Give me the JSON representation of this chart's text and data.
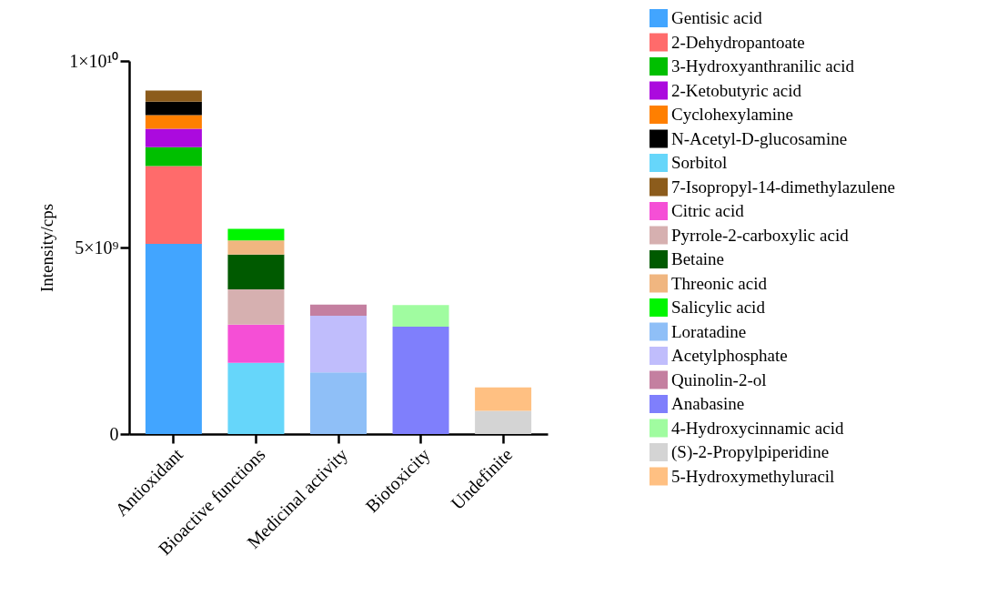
{
  "chart_data": {
    "type": "bar",
    "stacked": true,
    "ylabel": "Intensity/cps",
    "categories": [
      "Antioxidant",
      "Bioactive functions",
      "Medicinal activity",
      "Biotoxicity",
      "Undefinite"
    ],
    "ylim": [
      0,
      10000000000
    ],
    "yticks": [
      0,
      {
        "value": 5000000000,
        "label": "5×10⁹"
      },
      {
        "value": 10000000000,
        "label": "1×10¹⁰"
      }
    ],
    "grid": false,
    "legend": "right",
    "series": [
      {
        "name": "Gentisic acid",
        "color": "#42a5ff",
        "values": [
          5100000000,
          null,
          null,
          null,
          null
        ]
      },
      {
        "name": "2-Dehydropantoate",
        "color": "#ff6b6b",
        "values": [
          2080000000,
          null,
          null,
          null,
          null
        ]
      },
      {
        "name": "3-Hydroxyanthranilic acid",
        "color": "#00bf00",
        "values": [
          510000000,
          null,
          null,
          null,
          null
        ]
      },
      {
        "name": "2-Ketobutyric acid",
        "color": "#ab0ade",
        "values": [
          490000000,
          null,
          null,
          null,
          null
        ]
      },
      {
        "name": "Cyclohexylamine",
        "color": "#ff7f00",
        "values": [
          370000000,
          null,
          null,
          null,
          null
        ]
      },
      {
        "name": "N-Acetyl-D-glucosamine",
        "color": "#000000",
        "values": [
          360000000,
          null,
          null,
          null,
          null
        ]
      },
      {
        "name": "Sorbitol",
        "color": "#66d6fa",
        "values": [
          null,
          1910000000,
          null,
          null,
          null
        ]
      },
      {
        "name": "7-Isopropyl-14-dimethylazulene",
        "color": "#8c5c1c",
        "values": [
          300000000,
          null,
          null,
          null,
          null
        ]
      },
      {
        "name": "Citric acid",
        "color": "#f54fd6",
        "values": [
          null,
          1020000000,
          null,
          null,
          null
        ]
      },
      {
        "name": "Pyrrole-2-carboxylic acid",
        "color": "#d6b0b0",
        "values": [
          null,
          950000000,
          null,
          null,
          null
        ]
      },
      {
        "name": "Betaine",
        "color": "#005a00",
        "values": [
          null,
          930000000,
          null,
          null,
          null
        ]
      },
      {
        "name": "Threonic acid",
        "color": "#f0b680",
        "values": [
          null,
          380000000,
          null,
          null,
          null
        ]
      },
      {
        "name": "Salicylic acid",
        "color": "#00f500",
        "values": [
          null,
          310000000,
          null,
          null,
          null
        ]
      },
      {
        "name": "Loratadine",
        "color": "#8fbff7",
        "values": [
          null,
          null,
          1650000000,
          null,
          null
        ]
      },
      {
        "name": "Acetylphosphate",
        "color": "#c0bdfc",
        "values": [
          null,
          null,
          1520000000,
          null,
          null
        ]
      },
      {
        "name": "Quinolin-2-ol",
        "color": "#c47fa0",
        "values": [
          null,
          null,
          300000000,
          null,
          null
        ]
      },
      {
        "name": "Anabasine",
        "color": "#7f7ffc",
        "values": [
          null,
          null,
          null,
          2880000000,
          null
        ]
      },
      {
        "name": "4-Hydroxycinnamic acid",
        "color": "#a0fca0",
        "values": [
          null,
          null,
          null,
          580000000,
          null
        ]
      },
      {
        "name": "(S)-2-Propylpiperidine",
        "color": "#d4d4d4",
        "values": [
          null,
          null,
          null,
          null,
          620000000
        ]
      },
      {
        "name": "5-Hydroxymethyluracil",
        "color": "#ffc082",
        "values": [
          null,
          null,
          null,
          null,
          630000000
        ]
      }
    ]
  }
}
